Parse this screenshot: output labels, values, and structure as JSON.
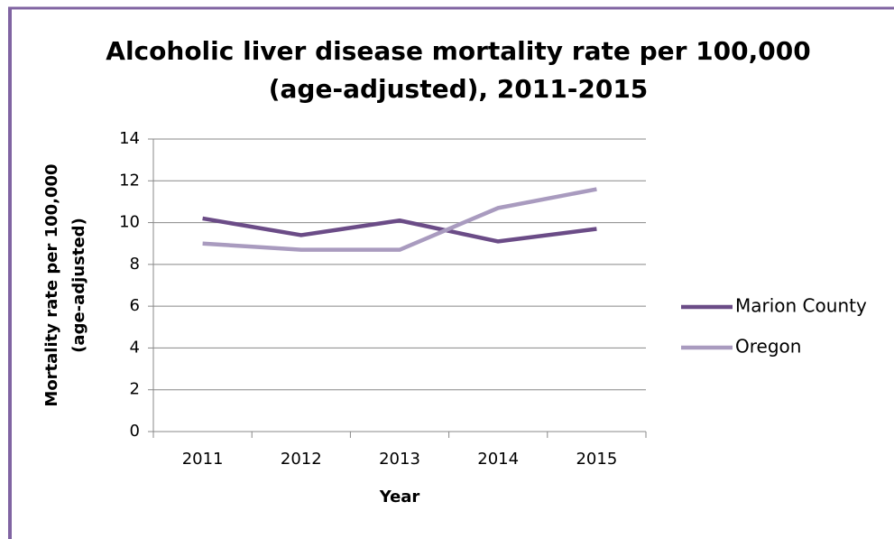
{
  "chart_data": {
    "type": "line",
    "title": [
      "Alcoholic liver disease mortality rate per 100,000",
      "(age-adjusted), 2011-2015"
    ],
    "x_label": "Year",
    "y_label": [
      "Mortality rate per 100,000",
      "(age-adjusted)"
    ],
    "categories": [
      "2011",
      "2012",
      "2013",
      "2014",
      "2015"
    ],
    "series": [
      {
        "name": "Marion County",
        "color": "#6b4c87",
        "values": [
          10.2,
          9.4,
          10.1,
          9.1,
          9.7
        ]
      },
      {
        "name": "Oregon",
        "color": "#a99bbf",
        "values": [
          9.0,
          8.7,
          8.7,
          10.7,
          11.6
        ]
      }
    ],
    "ylim": [
      0,
      14
    ],
    "yticks": [
      0,
      2,
      4,
      6,
      8,
      10,
      12,
      14
    ],
    "grid": true,
    "legend": "right"
  }
}
